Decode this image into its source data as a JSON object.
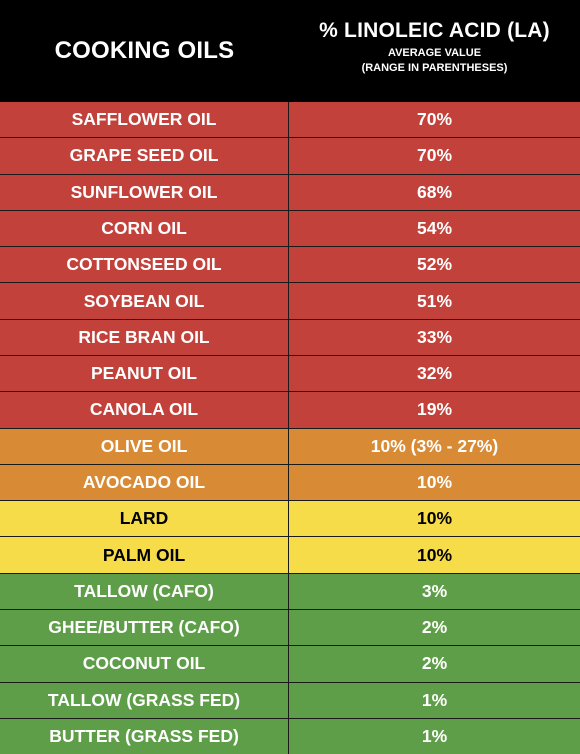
{
  "header": {
    "left_title": "COOKING OILS",
    "right_title": "% LINOLEIC ACID (LA)",
    "right_sub1": "AVERAGE VALUE",
    "right_sub2": "(RANGE IN PARENTHESES)"
  },
  "colors": {
    "red": "#c2413a",
    "orange": "#d88a34",
    "yellow": "#f6dc48",
    "green": "#5f9e49",
    "header": "#000000"
  },
  "rows": [
    {
      "name": "SAFFLOWER OIL",
      "value": "70%",
      "tier": "red"
    },
    {
      "name": "GRAPE SEED OIL",
      "value": "70%",
      "tier": "red"
    },
    {
      "name": "SUNFLOWER OIL",
      "value": "68%",
      "tier": "red"
    },
    {
      "name": "CORN OIL",
      "value": "54%",
      "tier": "red"
    },
    {
      "name": "COTTONSEED OIL",
      "value": "52%",
      "tier": "red"
    },
    {
      "name": "SOYBEAN OIL",
      "value": "51%",
      "tier": "red"
    },
    {
      "name": "RICE BRAN OIL",
      "value": "33%",
      "tier": "red"
    },
    {
      "name": "PEANUT OIL",
      "value": "32%",
      "tier": "red"
    },
    {
      "name": "CANOLA OIL",
      "value": "19%",
      "tier": "red"
    },
    {
      "name": "OLIVE OIL",
      "value": "10% (3% - 27%)",
      "tier": "orange"
    },
    {
      "name": "AVOCADO OIL",
      "value": "10%",
      "tier": "orange"
    },
    {
      "name": "LARD",
      "value": "10%",
      "tier": "yellow"
    },
    {
      "name": "PALM OIL",
      "value": "10%",
      "tier": "yellow"
    },
    {
      "name": "TALLOW (CAFO)",
      "value": "3%",
      "tier": "green"
    },
    {
      "name": "GHEE/BUTTER (CAFO)",
      "value": "2%",
      "tier": "green"
    },
    {
      "name": "COCONUT OIL",
      "value": "2%",
      "tier": "green"
    },
    {
      "name": "TALLOW (GRASS FED)",
      "value": "1%",
      "tier": "green"
    },
    {
      "name": "BUTTER (GRASS FED)",
      "value": "1%",
      "tier": "green"
    }
  ]
}
